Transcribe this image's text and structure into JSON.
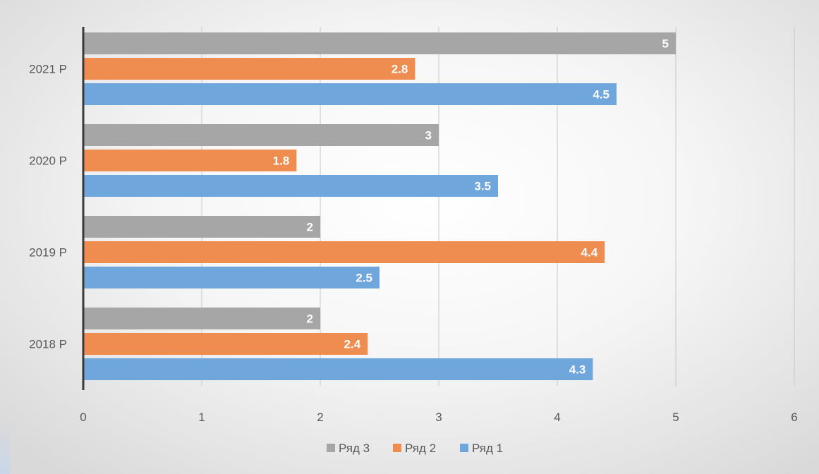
{
  "chart_data": {
    "type": "bar",
    "orientation": "horizontal",
    "categories": [
      "2018 Р",
      "2019 Р",
      "2020 Р",
      "2021 Р"
    ],
    "series": [
      {
        "name": "Ряд 1",
        "color": "#6fa6dc",
        "values": [
          4.3,
          2.5,
          3.5,
          4.5
        ]
      },
      {
        "name": "Ряд 2",
        "color": "#ee8d4f",
        "values": [
          2.4,
          4.4,
          1.8,
          2.8
        ]
      },
      {
        "name": "Ряд 3",
        "color": "#a6a6a6",
        "values": [
          2,
          2,
          3,
          5
        ]
      }
    ],
    "xlim": [
      0,
      6
    ],
    "x_ticks": [
      "0",
      "1",
      "2",
      "3",
      "4",
      "5",
      "6"
    ],
    "grid": "vertical",
    "legend": "bottom",
    "data_labels": "inside-end"
  }
}
